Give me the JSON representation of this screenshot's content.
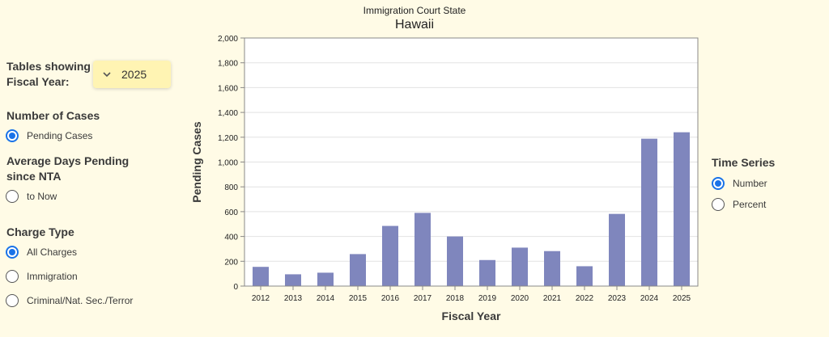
{
  "controls": {
    "fiscal_year_label": "Tables showing Fiscal Year:",
    "fiscal_year_value": "2025",
    "metric": {
      "title1": "Number of Cases",
      "pending_label": "Pending Cases",
      "title2": "Average Days Pending since NTA",
      "to_now_label": "to Now",
      "selected": "Pending Cases"
    },
    "charge_type": {
      "title": "Charge Type",
      "options": [
        "All Charges",
        "Immigration",
        "Criminal/Nat. Sec./Terror"
      ],
      "selected": "All Charges"
    },
    "time_series": {
      "title": "Time Series",
      "options": [
        "Number",
        "Percent"
      ],
      "selected": "Number"
    }
  },
  "chart_data": {
    "type": "bar",
    "subtitle": "Immigration Court State",
    "title": "Hawaii",
    "xlabel": "Fiscal Year",
    "ylabel": "Pending Cases",
    "categories": [
      "2012",
      "2013",
      "2014",
      "2015",
      "2016",
      "2017",
      "2018",
      "2019",
      "2020",
      "2021",
      "2022",
      "2023",
      "2024",
      "2025"
    ],
    "values": [
      155,
      95,
      108,
      258,
      485,
      590,
      400,
      210,
      310,
      282,
      160,
      582,
      1188,
      1240
    ],
    "ylim": [
      0,
      2000
    ],
    "yticks": [
      0,
      200,
      400,
      600,
      800,
      1000,
      1200,
      1400,
      1600,
      1800,
      2000
    ],
    "ytick_labels": [
      "0",
      "200",
      "400",
      "600",
      "800",
      "1,000",
      "1,200",
      "1,400",
      "1,600",
      "1,800",
      "2,000"
    ],
    "grid": true,
    "bar_color": "#7f86bd"
  }
}
